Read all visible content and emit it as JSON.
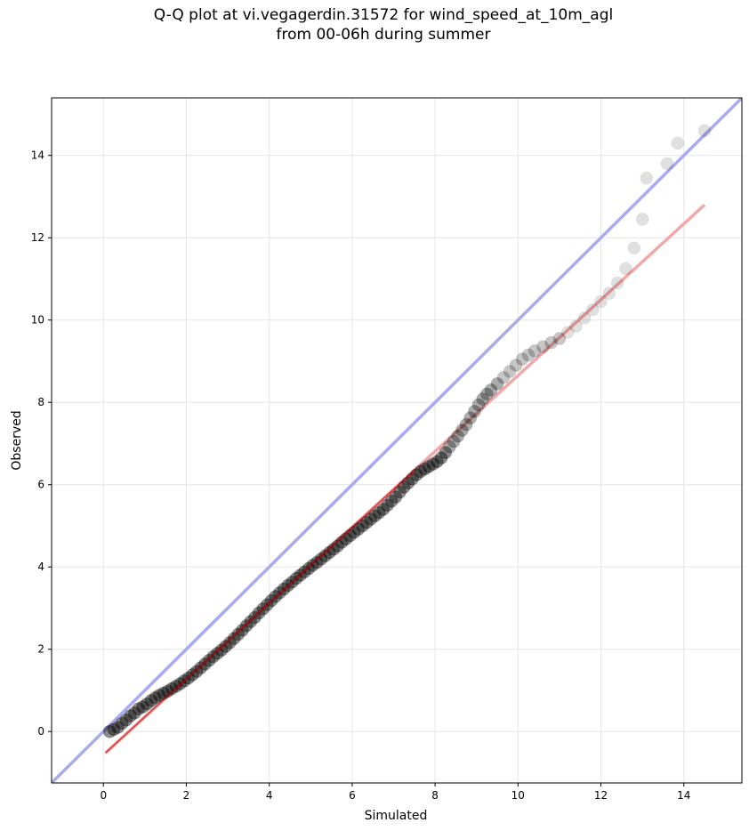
{
  "chart_data": {
    "type": "scatter",
    "title": "Q-Q plot at vi.vegagerdin.31572 for wind_speed_at_10m_agl\nfrom 00-06h during summer",
    "xlabel": "Simulated",
    "ylabel": "Observed",
    "xlim": [
      -1.25,
      15.4
    ],
    "ylim": [
      -1.25,
      15.4
    ],
    "xticks": [
      0,
      2,
      4,
      6,
      8,
      10,
      12,
      14
    ],
    "yticks": [
      0,
      2,
      4,
      6,
      8,
      10,
      12,
      14
    ],
    "grid": true,
    "reference_line": {
      "slope": 1,
      "intercept": 0,
      "color": "#aaaaee"
    },
    "fit_line": {
      "x": [
        0.05,
        14.5
      ],
      "y": [
        -0.52,
        12.8
      ],
      "color": "#f4a7a7"
    },
    "point_color": "#000000",
    "points_x": [
      0.15,
      0.25,
      0.35,
      0.45,
      0.55,
      0.65,
      0.75,
      0.85,
      0.95,
      1.05,
      1.15,
      1.25,
      1.35,
      1.45,
      1.55,
      1.65,
      1.75,
      1.85,
      1.95,
      2.05,
      2.15,
      2.25,
      2.35,
      2.45,
      2.55,
      2.65,
      2.75,
      2.85,
      2.95,
      3.05,
      3.15,
      3.25,
      3.35,
      3.45,
      3.55,
      3.65,
      3.75,
      3.85,
      3.95,
      4.05,
      4.15,
      4.25,
      4.35,
      4.45,
      4.55,
      4.65,
      4.75,
      4.85,
      4.95,
      5.05,
      5.15,
      5.25,
      5.35,
      5.45,
      5.55,
      5.65,
      5.75,
      5.85,
      5.95,
      6.05,
      6.15,
      6.25,
      6.35,
      6.45,
      6.55,
      6.65,
      6.75,
      6.85,
      6.95,
      7.05,
      7.15,
      7.25,
      7.35,
      7.45,
      7.55,
      7.65,
      7.75,
      7.85,
      7.95,
      8.05,
      8.15,
      8.25,
      8.35,
      8.45,
      8.55,
      8.65,
      8.75,
      8.85,
      8.95,
      9.05,
      9.15,
      9.25,
      9.35,
      9.5,
      9.65,
      9.8,
      9.95,
      10.1,
      10.25,
      10.4,
      10.6,
      10.8,
      11.0,
      11.2,
      11.4,
      11.6,
      11.8,
      12.0,
      12.2,
      12.4,
      12.6,
      12.8,
      13.0,
      13.1,
      13.6,
      13.85,
      14.5
    ],
    "points_y": [
      0.0,
      0.05,
      0.1,
      0.2,
      0.28,
      0.38,
      0.45,
      0.55,
      0.6,
      0.67,
      0.75,
      0.82,
      0.88,
      0.93,
      0.98,
      1.04,
      1.1,
      1.16,
      1.23,
      1.3,
      1.38,
      1.46,
      1.55,
      1.64,
      1.73,
      1.82,
      1.9,
      1.98,
      2.07,
      2.16,
      2.26,
      2.36,
      2.46,
      2.57,
      2.67,
      2.77,
      2.88,
      2.98,
      3.08,
      3.18,
      3.28,
      3.37,
      3.46,
      3.55,
      3.63,
      3.72,
      3.8,
      3.88,
      3.96,
      4.04,
      4.11,
      4.19,
      4.27,
      4.35,
      4.43,
      4.51,
      4.6,
      4.68,
      4.76,
      4.84,
      4.92,
      5.0,
      5.08,
      5.16,
      5.24,
      5.32,
      5.4,
      5.5,
      5.6,
      5.7,
      5.82,
      5.94,
      6.04,
      6.14,
      6.24,
      6.32,
      6.38,
      6.44,
      6.5,
      6.56,
      6.65,
      6.78,
      6.92,
      7.05,
      7.18,
      7.32,
      7.46,
      7.62,
      7.78,
      7.94,
      8.08,
      8.2,
      8.3,
      8.45,
      8.6,
      8.75,
      8.9,
      9.05,
      9.15,
      9.25,
      9.35,
      9.45,
      9.55,
      9.7,
      9.85,
      10.05,
      10.25,
      10.45,
      10.65,
      10.9,
      11.25,
      11.75,
      12.45,
      13.45,
      13.8,
      14.3,
      14.6
    ]
  }
}
